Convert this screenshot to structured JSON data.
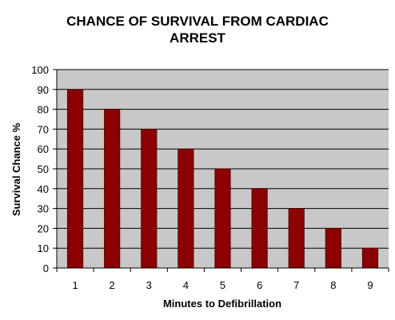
{
  "chart_data": {
    "type": "bar",
    "title_lines": [
      "CHANCE OF SURVIVAL FROM CARDIAC",
      "ARREST"
    ],
    "xlabel": "Minutes to Defibrillation",
    "ylabel": "Survival Chance %",
    "categories": [
      "1",
      "2",
      "3",
      "4",
      "5",
      "6",
      "7",
      "8",
      "9"
    ],
    "values": [
      90,
      80,
      70,
      60,
      50,
      40,
      30,
      20,
      10
    ],
    "ylim": [
      0,
      100
    ],
    "yticks": [
      "0",
      "10",
      "20",
      "30",
      "40",
      "50",
      "60",
      "70",
      "80",
      "90",
      "100"
    ],
    "grid": true,
    "legend": "none"
  },
  "colors": {
    "bar_fill": "#8b0000",
    "bar_stroke": "#4a0000",
    "plot_background": "#c8c8c8",
    "gridline": "#000000",
    "axis": "#000000"
  }
}
